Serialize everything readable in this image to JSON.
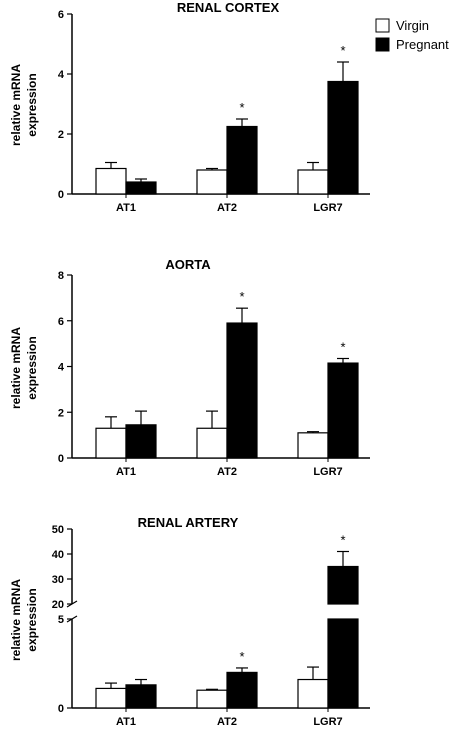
{
  "legend": [
    {
      "label": "Virgin",
      "fill": "#ffffff"
    },
    {
      "label": "Pregnant",
      "fill": "#000000"
    }
  ],
  "chart_data": [
    {
      "type": "bar",
      "title": "RENAL CORTEX",
      "ylabel": [
        "relative mRNA",
        "expression"
      ],
      "categories": [
        "AT1",
        "AT2",
        "LGR7"
      ],
      "ylim": [
        0,
        6
      ],
      "yticks": [
        0,
        2,
        4,
        6
      ],
      "series": [
        {
          "name": "Virgin",
          "values": [
            0.85,
            0.8,
            0.8
          ],
          "errors": [
            0.2,
            0.05,
            0.25
          ]
        },
        {
          "name": "Pregnant",
          "values": [
            0.4,
            2.25,
            3.75
          ],
          "errors": [
            0.1,
            0.25,
            0.65
          ]
        }
      ],
      "annotations": [
        {
          "category": "AT2",
          "series": "Pregnant",
          "text": "*"
        },
        {
          "category": "LGR7",
          "series": "Pregnant",
          "text": "*"
        }
      ]
    },
    {
      "type": "bar",
      "title": "AORTA",
      "ylabel": [
        "relative mRNA",
        "expression"
      ],
      "categories": [
        "AT1",
        "AT2",
        "LGR7"
      ],
      "ylim": [
        0,
        8
      ],
      "yticks": [
        0,
        2,
        4,
        6,
        8
      ],
      "series": [
        {
          "name": "Virgin",
          "values": [
            1.3,
            1.3,
            1.1
          ],
          "errors": [
            0.5,
            0.75,
            0.05
          ]
        },
        {
          "name": "Pregnant",
          "values": [
            1.45,
            5.9,
            4.15
          ],
          "errors": [
            0.6,
            0.65,
            0.2
          ]
        }
      ],
      "annotations": [
        {
          "category": "AT2",
          "series": "Pregnant",
          "text": "*"
        },
        {
          "category": "LGR7",
          "series": "Pregnant",
          "text": "*"
        }
      ]
    },
    {
      "type": "bar",
      "title": "RENAL ARTERY",
      "ylabel": [
        "relative mRNA",
        "expression"
      ],
      "categories": [
        "AT1",
        "AT2",
        "LGR7"
      ],
      "y_break": {
        "lower": [
          0,
          5
        ],
        "upper": [
          20,
          50
        ]
      },
      "yticks_lower": [
        0,
        5
      ],
      "yticks_upper": [
        20,
        30,
        40,
        50
      ],
      "series": [
        {
          "name": "Virgin",
          "values": [
            1.1,
            1.0,
            1.6
          ],
          "errors": [
            0.3,
            0.05,
            0.7
          ]
        },
        {
          "name": "Pregnant",
          "values": [
            1.3,
            2.0,
            35
          ],
          "errors": [
            0.3,
            0.25,
            6
          ]
        }
      ],
      "annotations": [
        {
          "category": "AT2",
          "series": "Pregnant",
          "text": "*"
        },
        {
          "category": "LGR7",
          "series": "Pregnant",
          "text": "*"
        }
      ]
    }
  ]
}
